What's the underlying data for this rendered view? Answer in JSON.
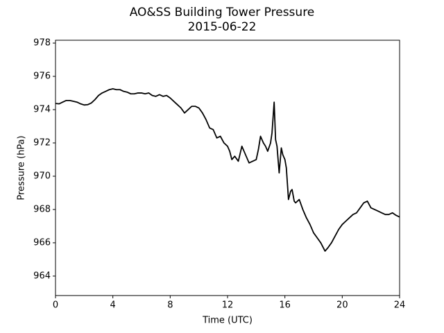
{
  "chart_data": {
    "type": "line",
    "title": "AO&SS Building Tower Pressure",
    "subtitle": "2015-06-22",
    "x_label": "Time (UTC)",
    "y_label": "Pressure (hPa)",
    "xlim": [
      0,
      24
    ],
    "xticks": [
      0,
      4,
      8,
      12,
      16,
      20,
      24
    ],
    "ylim": [
      962.83,
      978.17
    ],
    "yticks": [
      964,
      966,
      968,
      970,
      972,
      974,
      976,
      978
    ],
    "series": [
      {
        "name": "Pressure",
        "color": "#000000",
        "x": [
          0,
          0.25,
          0.5,
          0.75,
          1,
          1.25,
          1.5,
          1.75,
          2,
          2.25,
          2.5,
          2.75,
          3,
          3.25,
          3.5,
          3.75,
          4,
          4.25,
          4.5,
          4.75,
          5,
          5.25,
          5.5,
          5.75,
          6,
          6.25,
          6.5,
          6.75,
          7,
          7.25,
          7.5,
          7.75,
          8,
          8.25,
          8.5,
          8.75,
          9,
          9.25,
          9.5,
          9.75,
          10,
          10.25,
          10.5,
          10.75,
          11,
          11.25,
          11.5,
          11.75,
          12,
          12.15,
          12.3,
          12.5,
          12.75,
          13,
          13.25,
          13.5,
          13.75,
          14,
          14.15,
          14.3,
          14.5,
          14.65,
          14.8,
          15,
          15.1,
          15.25,
          15.35,
          15.45,
          15.6,
          15.75,
          15.85,
          16,
          16.1,
          16.25,
          16.4,
          16.5,
          16.65,
          16.75,
          17,
          17.25,
          17.5,
          17.75,
          18,
          18.25,
          18.5,
          18.8,
          19,
          19.25,
          19.5,
          19.75,
          20,
          20.25,
          20.5,
          20.75,
          21,
          21.25,
          21.5,
          21.75,
          22,
          22.25,
          22.5,
          22.75,
          23,
          23.25,
          23.5,
          23.75,
          24
        ],
        "values": [
          974.37,
          974.35,
          974.45,
          974.55,
          974.55,
          974.5,
          974.45,
          974.35,
          974.28,
          974.3,
          974.4,
          974.6,
          974.85,
          975.0,
          975.1,
          975.2,
          975.25,
          975.2,
          975.2,
          975.1,
          975.05,
          974.95,
          974.95,
          975.0,
          975.0,
          974.95,
          975.0,
          974.85,
          974.8,
          974.9,
          974.8,
          974.85,
          974.7,
          974.5,
          974.3,
          974.1,
          973.8,
          974.0,
          974.2,
          974.2,
          974.1,
          973.8,
          973.4,
          972.9,
          972.8,
          972.3,
          972.4,
          972.0,
          971.8,
          971.5,
          971.0,
          971.2,
          970.9,
          971.8,
          971.3,
          970.8,
          970.9,
          971.0,
          971.6,
          972.4,
          972.0,
          971.8,
          971.5,
          972.0,
          972.6,
          974.45,
          972.2,
          971.8,
          970.2,
          971.7,
          971.3,
          971.0,
          970.5,
          968.6,
          969.1,
          969.2,
          968.5,
          968.4,
          968.6,
          968.0,
          967.5,
          967.1,
          966.6,
          966.3,
          966.0,
          965.5,
          965.7,
          966.0,
          966.4,
          966.8,
          967.1,
          967.3,
          967.5,
          967.7,
          967.8,
          968.1,
          968.4,
          968.5,
          968.1,
          968.0,
          967.9,
          967.8,
          967.7,
          967.7,
          967.8,
          967.65,
          967.55
        ]
      }
    ]
  }
}
